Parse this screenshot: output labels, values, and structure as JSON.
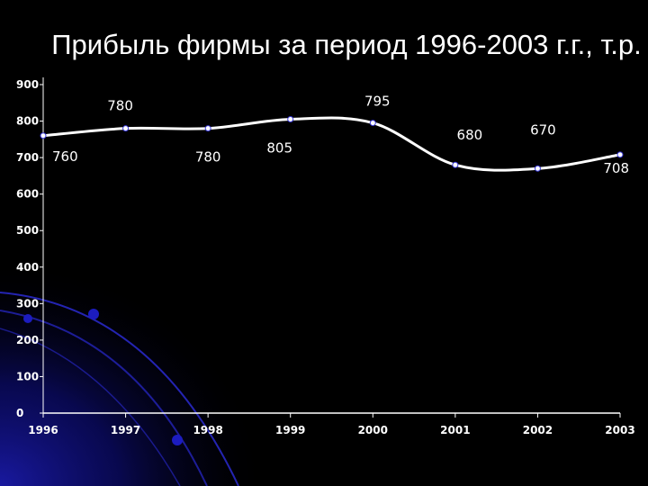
{
  "chart_data": {
    "type": "line",
    "title": "Прибыль фирмы за период 1996-2003 г.г., т.р.",
    "x": [
      "1996",
      "1997",
      "1998",
      "1999",
      "2000",
      "2001",
      "2002",
      "2003"
    ],
    "values": [
      760,
      780,
      780,
      805,
      795,
      680,
      670,
      708
    ],
    "data_labels": [
      "760",
      "780",
      "780",
      "805",
      "795",
      "680",
      "670",
      "708"
    ],
    "ylim": [
      0,
      900
    ],
    "yticks": [
      "0",
      "100",
      "200",
      "300",
      "400",
      "500",
      "600",
      "700",
      "800",
      "900"
    ],
    "grid": false,
    "legend": "none",
    "line_color": "#ffffff",
    "background_color": "#000000",
    "decoration_color": "#1a1aa8"
  }
}
